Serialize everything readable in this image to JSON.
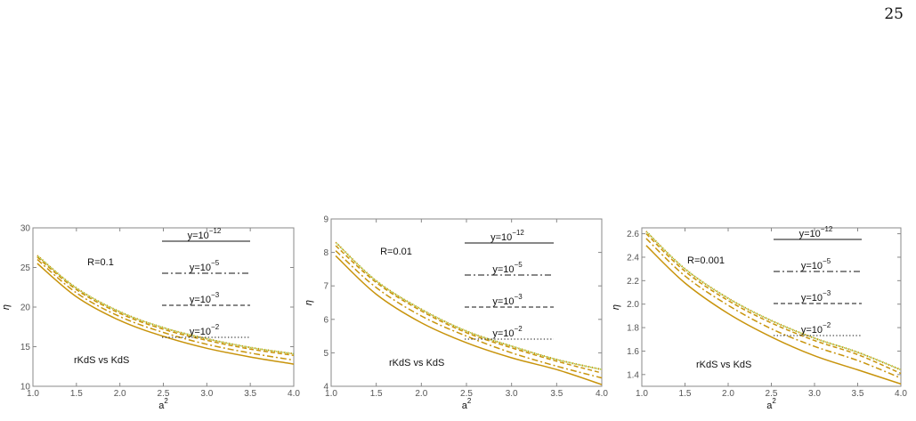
{
  "page_number": "25",
  "colors": {
    "curve": "#c8940c",
    "curve_dotted_green": "#7fc51c",
    "frame": "#888888",
    "tick_label": "#555555"
  },
  "chart_data": [
    {
      "type": "line",
      "xlabel": "a2",
      "ylabel": "η",
      "xlim": [
        1.0,
        4.0
      ],
      "ylim": [
        10,
        30
      ],
      "xticks": [
        "1.0",
        "1.5",
        "2.0",
        "2.5",
        "3.0",
        "3.5",
        "4.0"
      ],
      "yticks": [
        "10",
        "15",
        "20",
        "25",
        "30"
      ],
      "grid": false,
      "legend_position": "top-right",
      "annotations": [
        "R=0.1",
        "rKdS vs KdS"
      ],
      "series": [
        {
          "name": "y=10−12",
          "style": "solid",
          "x": [
            1.05,
            1.5,
            2.0,
            2.5,
            3.0,
            3.5,
            4.0
          ],
          "values": [
            25.5,
            21.3,
            18.3,
            16.3,
            14.8,
            13.7,
            12.8
          ]
        },
        {
          "name": "y=10−5",
          "style": "dashdot",
          "x": [
            1.05,
            1.5,
            2.0,
            2.5,
            3.0,
            3.5,
            4.0
          ],
          "values": [
            26.0,
            21.8,
            18.8,
            16.8,
            15.3,
            14.2,
            13.3
          ]
        },
        {
          "name": "y=10−3",
          "style": "dashed",
          "x": [
            1.05,
            1.5,
            2.0,
            2.5,
            3.0,
            3.5,
            4.0
          ],
          "values": [
            26.3,
            22.2,
            19.2,
            17.2,
            15.8,
            14.7,
            13.9
          ]
        },
        {
          "name": "y=10−2",
          "style": "dotted",
          "x": [
            1.05,
            1.5,
            2.0,
            2.5,
            3.0,
            3.5,
            4.0
          ],
          "values": [
            26.5,
            22.4,
            19.4,
            17.4,
            16.0,
            14.9,
            14.1
          ]
        }
      ]
    },
    {
      "type": "line",
      "xlabel": "a2",
      "ylabel": "η",
      "xlim": [
        1.0,
        4.0
      ],
      "ylim": [
        4,
        9
      ],
      "xticks": [
        "1.0",
        "1.5",
        "2.0",
        "2.5",
        "3.0",
        "3.5",
        "4.0"
      ],
      "yticks": [
        "4",
        "5",
        "6",
        "7",
        "8",
        "9"
      ],
      "grid": false,
      "legend_position": "top-right",
      "annotations": [
        "R=0.01",
        "rKdS vs KdS"
      ],
      "series": [
        {
          "name": "y=10−12",
          "style": "solid",
          "x": [
            1.05,
            1.5,
            2.0,
            2.5,
            3.0,
            3.5,
            4.0
          ],
          "values": [
            7.9,
            6.75,
            5.9,
            5.3,
            4.85,
            4.5,
            4.05
          ]
        },
        {
          "name": "y=10−5",
          "style": "dashdot",
          "x": [
            1.05,
            1.5,
            2.0,
            2.5,
            3.0,
            3.5,
            4.0
          ],
          "values": [
            8.05,
            6.95,
            6.1,
            5.5,
            5.0,
            4.6,
            4.25
          ]
        },
        {
          "name": "y=10−3",
          "style": "dashed",
          "x": [
            1.05,
            1.5,
            2.0,
            2.5,
            3.0,
            3.5,
            4.0
          ],
          "values": [
            8.2,
            7.1,
            6.25,
            5.6,
            5.15,
            4.75,
            4.4
          ]
        },
        {
          "name": "y=10−2",
          "style": "dotted",
          "x": [
            1.05,
            1.5,
            2.0,
            2.5,
            3.0,
            3.5,
            4.0
          ],
          "values": [
            8.3,
            7.15,
            6.3,
            5.65,
            5.2,
            4.8,
            4.5
          ]
        }
      ]
    },
    {
      "type": "line",
      "xlabel": "a2",
      "ylabel": "η",
      "xlim": [
        1.0,
        4.0
      ],
      "ylim": [
        1.3,
        2.65
      ],
      "xticks": [
        "1.0",
        "1.5",
        "2.0",
        "2.5",
        "3.0",
        "3.5",
        "4.0"
      ],
      "yticks": [
        "1.4",
        "1.6",
        "1.8",
        "2.0",
        "2.2",
        "2.4",
        "2.6"
      ],
      "grid": false,
      "legend_position": "top-right",
      "annotations": [
        "R=0.001",
        "rKdS vs KdS"
      ],
      "series": [
        {
          "name": "y=10−12",
          "style": "solid",
          "x": [
            1.05,
            1.5,
            2.0,
            2.5,
            3.0,
            3.5,
            4.0
          ],
          "values": [
            2.5,
            2.18,
            1.92,
            1.72,
            1.56,
            1.44,
            1.32
          ]
        },
        {
          "name": "y=10−5",
          "style": "dashdot",
          "x": [
            1.05,
            1.5,
            2.0,
            2.5,
            3.0,
            3.5,
            4.0
          ],
          "values": [
            2.56,
            2.24,
            1.99,
            1.79,
            1.64,
            1.52,
            1.37
          ]
        },
        {
          "name": "y=10−3",
          "style": "dashed",
          "x": [
            1.05,
            1.5,
            2.0,
            2.5,
            3.0,
            3.5,
            4.0
          ],
          "values": [
            2.6,
            2.28,
            2.03,
            1.84,
            1.69,
            1.57,
            1.41
          ]
        },
        {
          "name": "y=10−2",
          "style": "dotted",
          "x": [
            1.05,
            1.5,
            2.0,
            2.5,
            3.0,
            3.5,
            4.0
          ],
          "values": [
            2.62,
            2.3,
            2.05,
            1.86,
            1.71,
            1.59,
            1.44
          ]
        }
      ]
    }
  ]
}
